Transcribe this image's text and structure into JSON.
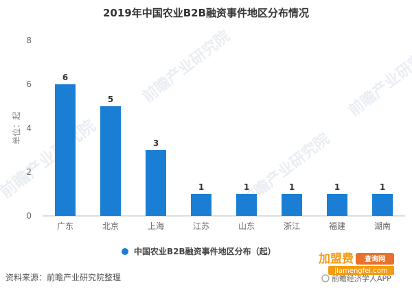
{
  "chart_data": {
    "type": "bar",
    "title": "2019年中国农业B2B融资事件地区分布情况",
    "ylabel": "单位：起",
    "categories": [
      "广东",
      "北京",
      "上海",
      "江苏",
      "山东",
      "浙江",
      "福建",
      "湖南"
    ],
    "series": [
      {
        "name": "中国农业B2B融资事件地区分布（起）",
        "values": [
          6,
          5,
          3,
          1,
          1,
          1,
          1,
          1
        ]
      }
    ],
    "data_labels": [
      "6",
      "5",
      "3",
      "1",
      "1",
      "1",
      "1",
      "1"
    ],
    "ylim": [
      0,
      8
    ],
    "yticks": [
      0,
      2,
      4,
      6,
      8
    ],
    "grid": false,
    "legend_position": "bottom-center",
    "bar_color": "#1a7fd4"
  },
  "source_text": "资料来源：前瞻产业研究院整理",
  "watermark_text": "前瞻产业研究院",
  "brand": {
    "main": "加盟费",
    "badge": "查询网",
    "url": "jiamengfei.com"
  },
  "app_text": "前瞻经济学人APP"
}
